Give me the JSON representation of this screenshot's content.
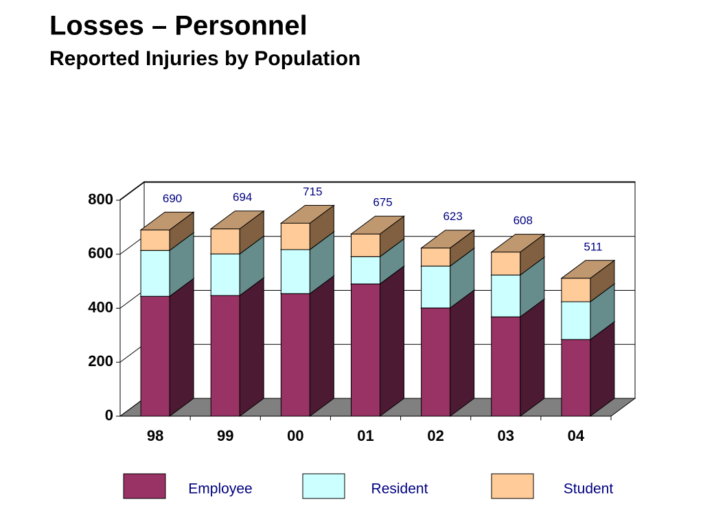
{
  "chart_data": {
    "type": "bar3d-stacked",
    "title": "Losses – Personnel",
    "subtitle": "Reported Injuries by Population",
    "categories": [
      "98",
      "99",
      "00",
      "01",
      "02",
      "03",
      "04"
    ],
    "series": [
      {
        "name": "Employee",
        "color": "#993366",
        "side": "#4d1a33",
        "top": "#7a2952",
        "values": [
          444,
          447,
          454,
          490,
          401,
          368,
          284
        ]
      },
      {
        "name": "Resident",
        "color": "#ccffff",
        "side": "#668c8c",
        "top": "#99cccc",
        "values": [
          170,
          154,
          163,
          101,
          155,
          155,
          140
        ]
      },
      {
        "name": "Student",
        "color": "#ffcc99",
        "side": "#806040",
        "top": "#c09870",
        "values": [
          76,
          93,
          98,
          84,
          67,
          85,
          87
        ]
      }
    ],
    "totals": [
      690,
      694,
      715,
      675,
      623,
      608,
      511
    ],
    "ylim": [
      0,
      800
    ],
    "yticks": [
      0,
      200,
      400,
      600,
      800
    ],
    "grid": true
  }
}
